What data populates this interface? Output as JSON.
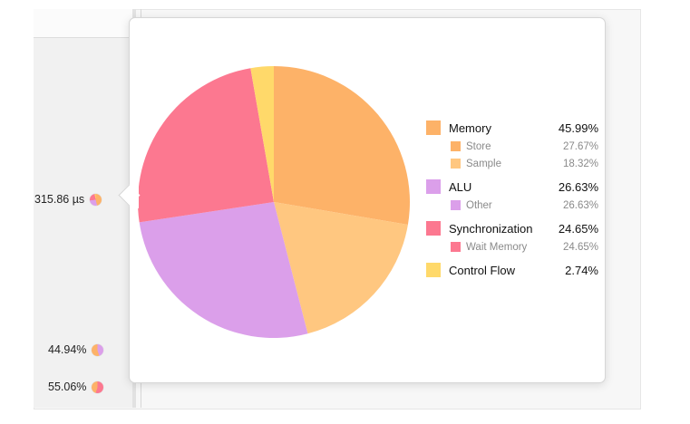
{
  "sidebar_values": [
    {
      "label": "315.86 µs"
    },
    {
      "label": "44.94%"
    },
    {
      "label": "55.06%"
    }
  ],
  "chart_data": {
    "type": "pie",
    "slices": [
      {
        "name": "Store",
        "value": 27.67,
        "color": "#FDB268"
      },
      {
        "name": "Sample",
        "value": 18.32,
        "color": "#FFC780"
      },
      {
        "name": "Other",
        "value": 26.63,
        "color": "#DB9FEA"
      },
      {
        "name": "Wait Memory",
        "value": 24.65,
        "color": "#FC7890"
      },
      {
        "name": "Control Flow",
        "value": 2.74,
        "color": "#FFD96A"
      }
    ],
    "legend": [
      {
        "name": "Memory",
        "value": "45.99%",
        "color": "#FDB268",
        "level": "main"
      },
      {
        "name": "Store",
        "value": "27.67%",
        "color": "#FDB268",
        "level": "sub"
      },
      {
        "name": "Sample",
        "value": "18.32%",
        "color": "#FFC780",
        "level": "sub"
      },
      {
        "name": "ALU",
        "value": "26.63%",
        "color": "#DB9FEA",
        "level": "main"
      },
      {
        "name": "Other",
        "value": "26.63%",
        "color": "#DB9FEA",
        "level": "sub"
      },
      {
        "name": "Synchronization",
        "value": "24.65%",
        "color": "#FC7890",
        "level": "main"
      },
      {
        "name": "Wait Memory",
        "value": "24.65%",
        "color": "#FC7890",
        "level": "sub"
      },
      {
        "name": "Control Flow",
        "value": "2.74%",
        "color": "#FFD96A",
        "level": "main"
      }
    ],
    "legend_placement": "right"
  }
}
